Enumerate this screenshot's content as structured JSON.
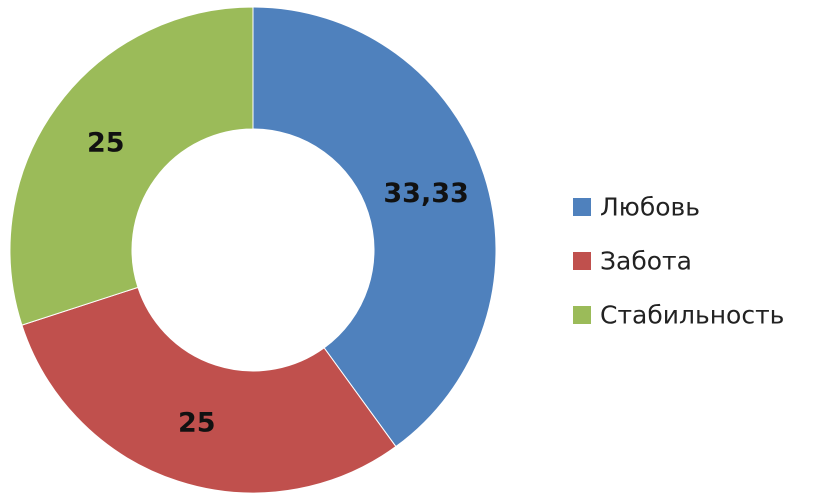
{
  "chart_data": {
    "type": "pie",
    "variant": "doughnut",
    "categories": [
      "Любовь",
      "Забота",
      "Стабильность"
    ],
    "values": [
      33.33,
      25,
      25
    ],
    "data_labels": [
      "33,33",
      "25",
      "25"
    ],
    "colors": [
      "#4f81bd",
      "#c0504d",
      "#9bbb59"
    ],
    "start_angle_deg": 0,
    "direction": "clockwise",
    "legend": "right"
  }
}
